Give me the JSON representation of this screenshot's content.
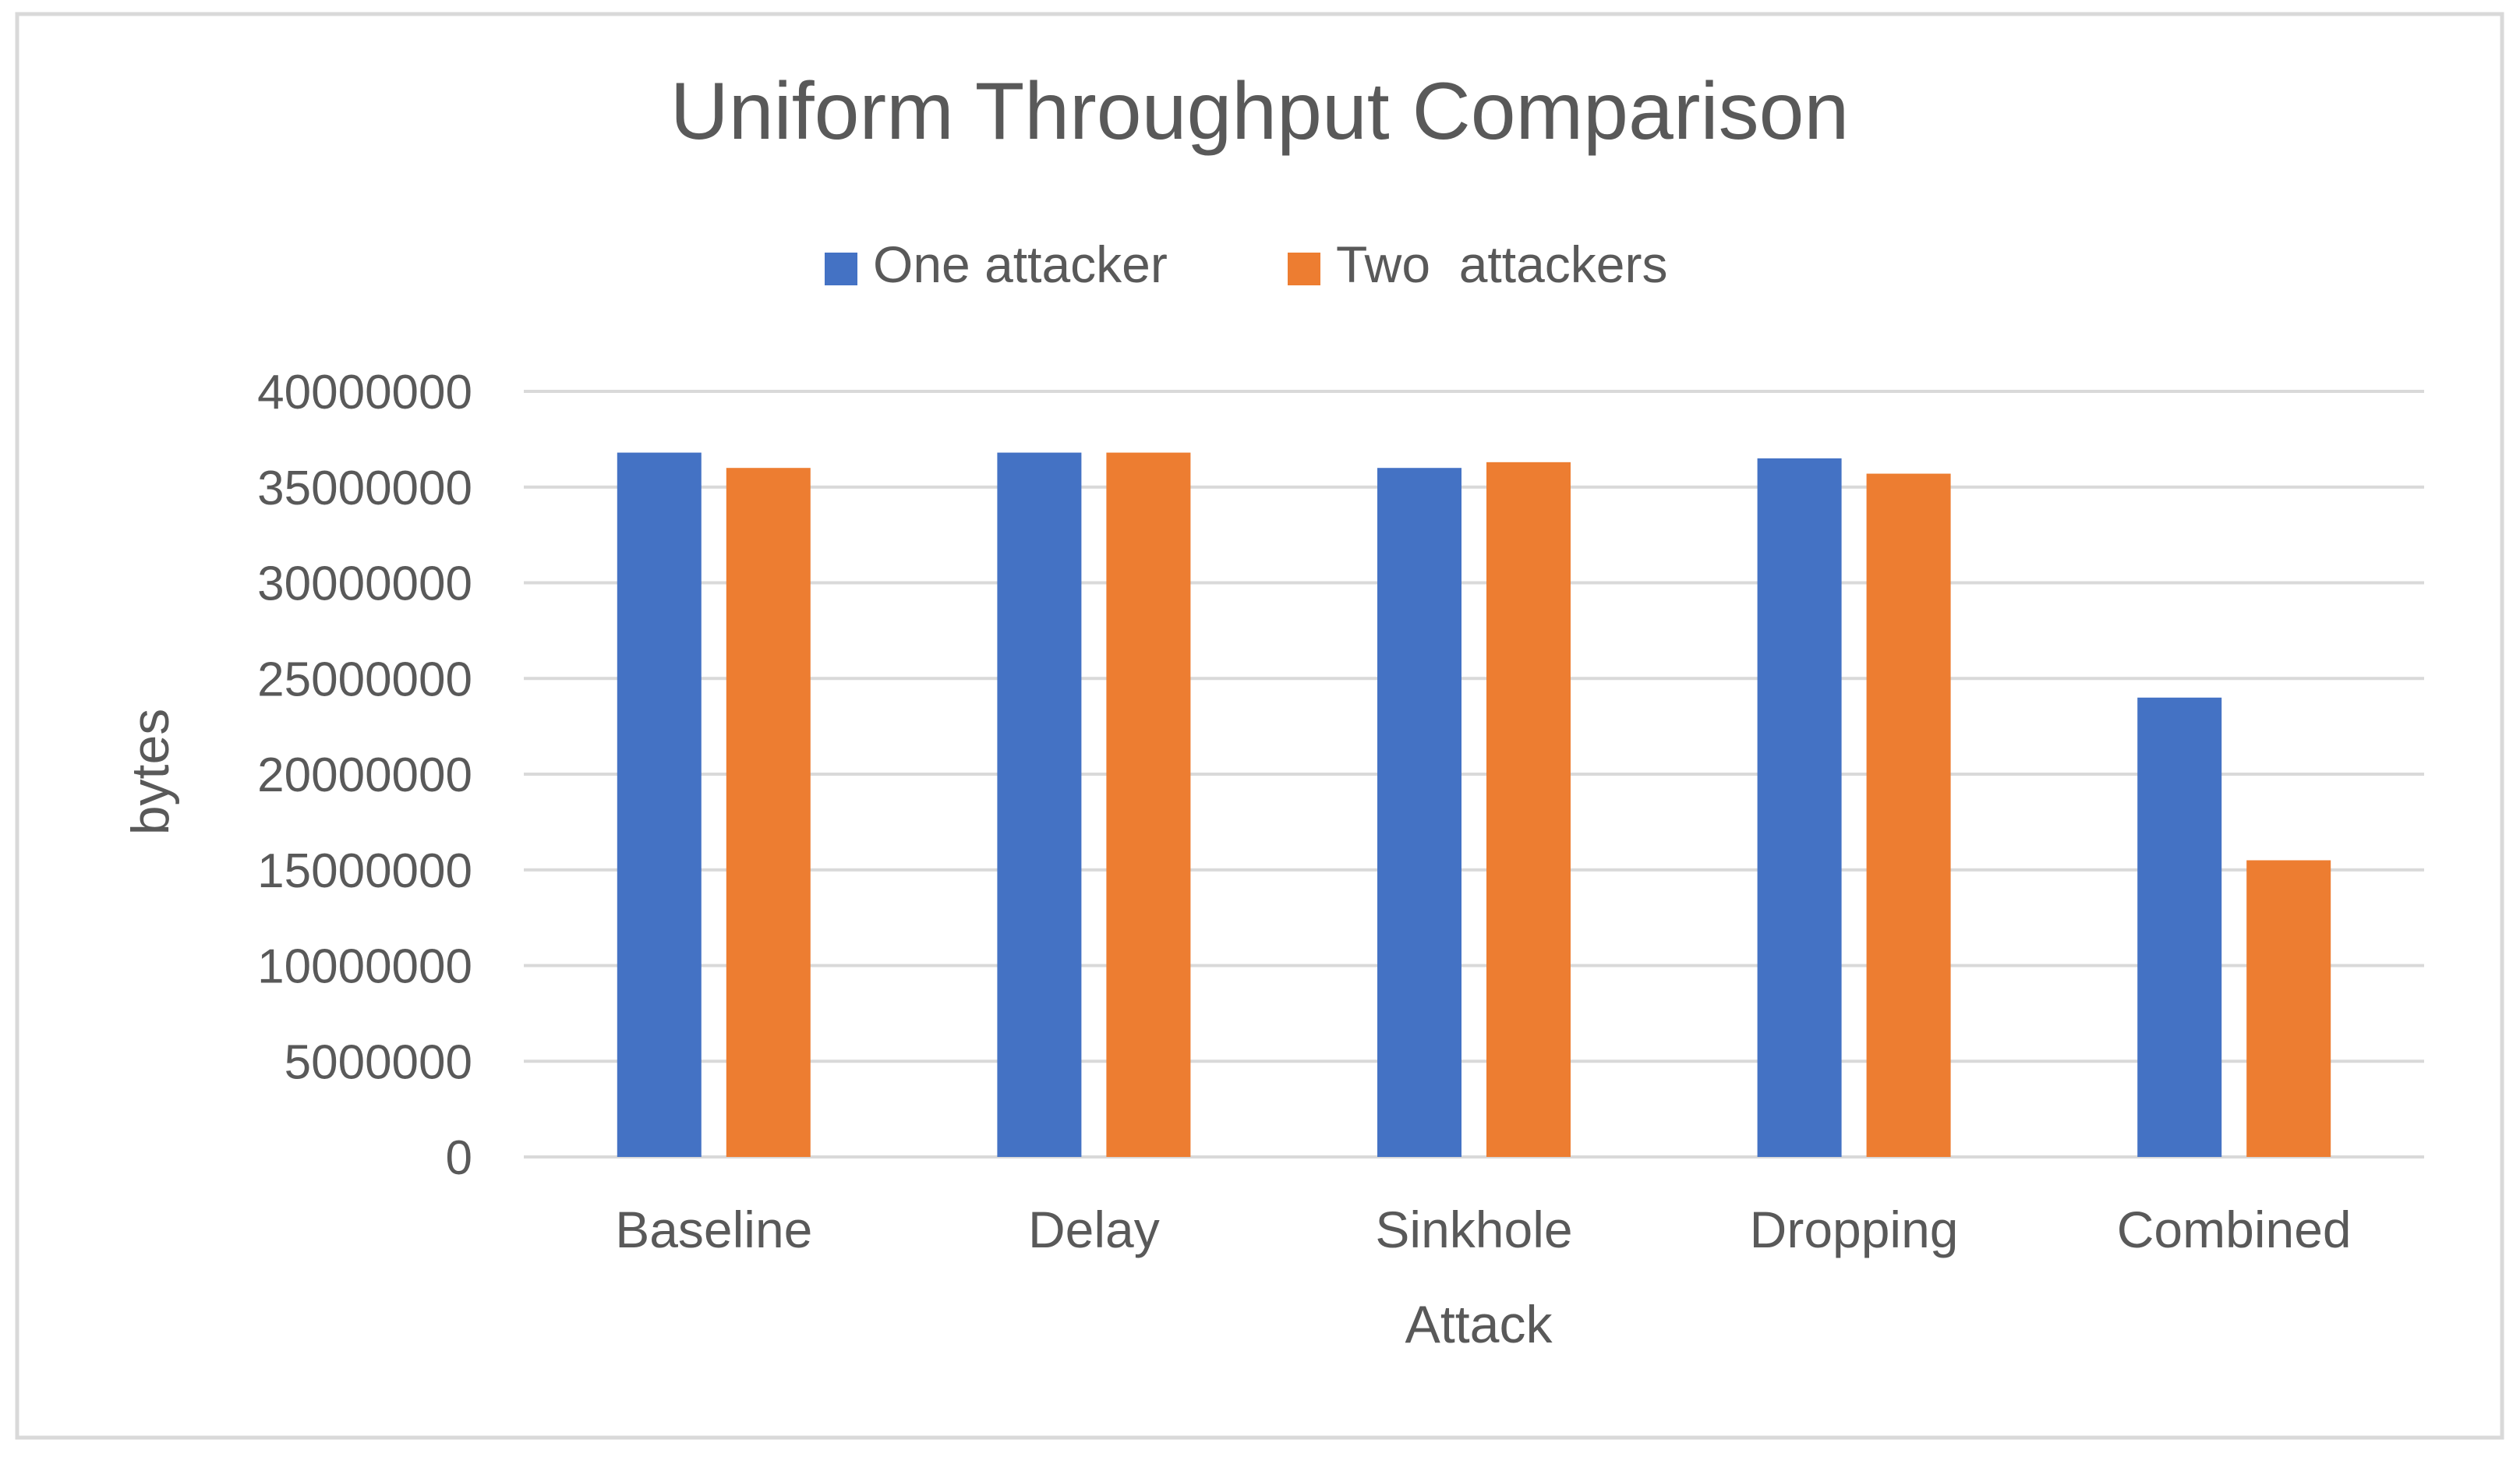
{
  "chart_data": {
    "type": "bar",
    "title": "Uniform Throughput Comparison",
    "xlabel": "Attack",
    "ylabel": "bytes",
    "categories": [
      "Baseline",
      "Delay",
      "Sinkhole",
      "Dropping",
      "Combined"
    ],
    "series": [
      {
        "name": "One attacker",
        "color": "#4472C4",
        "values": [
          36800000,
          36800000,
          36000000,
          36500000,
          24000000
        ]
      },
      {
        "name": "Two  attackers",
        "color": "#ED7D31",
        "values": [
          36000000,
          36800000,
          36300000,
          35700000,
          15500000
        ]
      }
    ],
    "ylim": [
      0,
      40000000
    ],
    "yticks": [
      "0",
      "5000000",
      "10000000",
      "15000000",
      "20000000",
      "25000000",
      "30000000",
      "35000000",
      "40000000"
    ],
    "grid": true,
    "legend": "top-center"
  }
}
